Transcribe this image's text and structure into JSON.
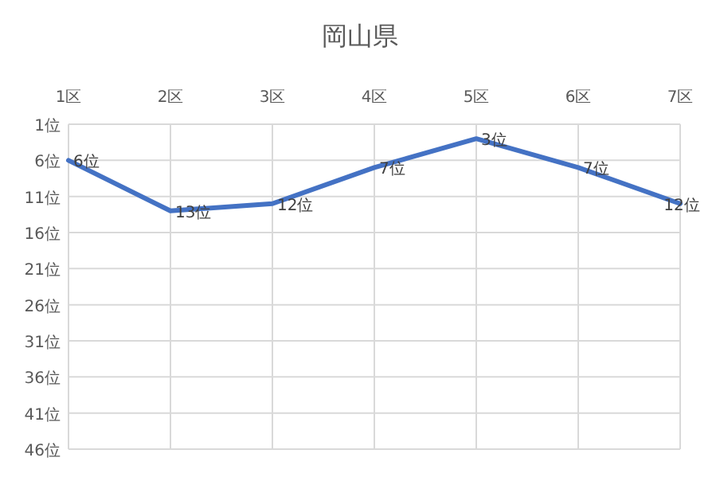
{
  "chart_data": {
    "type": "line",
    "title": "岡山県",
    "categories": [
      "1区",
      "2区",
      "3区",
      "4区",
      "5区",
      "6区",
      "7区"
    ],
    "series": [
      {
        "color": "#4472c4",
        "values": [
          6,
          13,
          12,
          7,
          3,
          7,
          12
        ],
        "value_labels": [
          "6位",
          "13位",
          "12位",
          "7位",
          "3位",
          "7位",
          "12位"
        ]
      }
    ],
    "ylim": [
      46,
      1
    ],
    "yticks": [
      {
        "value": 1,
        "label": "1位"
      },
      {
        "value": 6,
        "label": "6位"
      },
      {
        "value": 11,
        "label": "11位"
      },
      {
        "value": 16,
        "label": "16位"
      },
      {
        "value": 21,
        "label": "21位"
      },
      {
        "value": 26,
        "label": "26位"
      },
      {
        "value": 31,
        "label": "31位"
      },
      {
        "value": 36,
        "label": "36位"
      },
      {
        "value": 41,
        "label": "41位"
      },
      {
        "value": 46,
        "label": "46位"
      }
    ],
    "grid": true,
    "marker": "none",
    "line_style": "solid"
  }
}
